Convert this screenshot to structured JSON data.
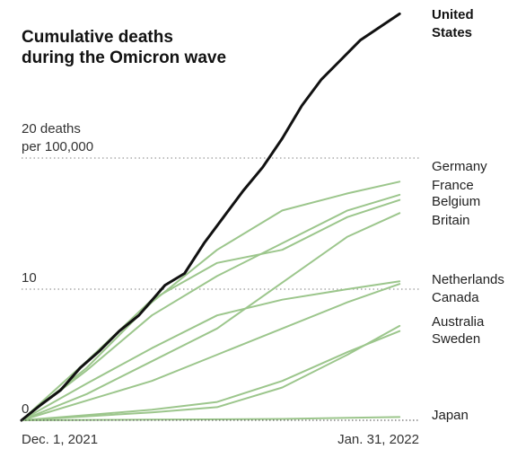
{
  "chart_data": {
    "type": "line",
    "title_lines": [
      "Cumulative deaths",
      "during the Omicron wave"
    ],
    "ytick_labels": [
      {
        "value": 20,
        "lines": [
          "20 deaths",
          "per 100,000"
        ]
      },
      {
        "value": 10,
        "lines": [
          "10"
        ]
      },
      {
        "value": 0,
        "lines": [
          "0"
        ]
      }
    ],
    "xtick_labels": [
      {
        "day": 0,
        "label": "Dec. 1, 2021"
      },
      {
        "day": 61,
        "label": "Jan. 31, 2022"
      }
    ],
    "ylim": [
      0,
      31
    ],
    "xlim_days": [
      0,
      61
    ],
    "grid": "dotted lines at y = 10 and y = 20",
    "colors": {
      "highlight": "#111111",
      "other": "#9cc68c",
      "grid": "#999999",
      "text": "#222222"
    },
    "series": [
      {
        "name": "United States",
        "highlight": true,
        "points": [
          [
            0,
            0
          ],
          [
            3,
            1.2
          ],
          [
            6,
            2.3
          ],
          [
            9,
            4
          ],
          [
            12,
            5.3
          ],
          [
            15,
            6.8
          ],
          [
            18,
            8
          ],
          [
            22,
            10.3
          ],
          [
            25,
            11.2
          ],
          [
            28,
            13.5
          ],
          [
            31,
            15.5
          ],
          [
            34,
            17.5
          ],
          [
            37,
            19.3
          ],
          [
            40,
            21.5
          ],
          [
            43,
            24
          ],
          [
            46,
            26
          ],
          [
            49,
            27.5
          ],
          [
            52,
            29
          ],
          [
            55,
            30
          ],
          [
            58,
            31
          ]
        ]
      },
      {
        "name": "Germany",
        "points": [
          [
            0,
            0
          ],
          [
            10,
            4
          ],
          [
            20,
            9
          ],
          [
            30,
            13
          ],
          [
            40,
            16
          ],
          [
            50,
            17.3
          ],
          [
            58,
            18.2
          ]
        ]
      },
      {
        "name": "France",
        "points": [
          [
            0,
            0
          ],
          [
            10,
            3.8
          ],
          [
            20,
            8
          ],
          [
            30,
            11
          ],
          [
            40,
            13.5
          ],
          [
            50,
            16
          ],
          [
            58,
            17.2
          ]
        ]
      },
      {
        "name": "Belgium",
        "points": [
          [
            0,
            0
          ],
          [
            10,
            4.5
          ],
          [
            20,
            9.2
          ],
          [
            30,
            12
          ],
          [
            40,
            13
          ],
          [
            50,
            15.5
          ],
          [
            58,
            16.8
          ]
        ]
      },
      {
        "name": "Britain",
        "points": [
          [
            0,
            0
          ],
          [
            10,
            2
          ],
          [
            20,
            4.5
          ],
          [
            30,
            7
          ],
          [
            40,
            10.5
          ],
          [
            50,
            14
          ],
          [
            58,
            15.8
          ]
        ]
      },
      {
        "name": "Netherlands",
        "points": [
          [
            0,
            0
          ],
          [
            10,
            2.8
          ],
          [
            20,
            5.5
          ],
          [
            30,
            8
          ],
          [
            40,
            9.2
          ],
          [
            50,
            10
          ],
          [
            58,
            10.6
          ]
        ]
      },
      {
        "name": "Canada",
        "points": [
          [
            0,
            0
          ],
          [
            10,
            1.5
          ],
          [
            20,
            3
          ],
          [
            30,
            5
          ],
          [
            40,
            7
          ],
          [
            50,
            9
          ],
          [
            58,
            10.4
          ]
        ]
      },
      {
        "name": "Australia",
        "points": [
          [
            0,
            0
          ],
          [
            10,
            0.3
          ],
          [
            20,
            0.6
          ],
          [
            30,
            1
          ],
          [
            40,
            2.5
          ],
          [
            50,
            5
          ],
          [
            58,
            7.2
          ]
        ]
      },
      {
        "name": "Sweden",
        "points": [
          [
            0,
            0
          ],
          [
            10,
            0.4
          ],
          [
            20,
            0.8
          ],
          [
            30,
            1.4
          ],
          [
            40,
            3
          ],
          [
            50,
            5.2
          ],
          [
            58,
            6.8
          ]
        ]
      },
      {
        "name": "Japan",
        "points": [
          [
            0,
            0
          ],
          [
            20,
            0.05
          ],
          [
            40,
            0.1
          ],
          [
            58,
            0.25
          ]
        ]
      }
    ],
    "series_labels": [
      {
        "series": "United States",
        "lines": [
          "United",
          "States"
        ],
        "bold": true
      },
      {
        "series": "Germany",
        "lines": [
          "Germany"
        ]
      },
      {
        "series": "France",
        "lines": [
          "France"
        ]
      },
      {
        "series": "Belgium",
        "lines": [
          "Belgium"
        ]
      },
      {
        "series": "Britain",
        "lines": [
          "Britain"
        ]
      },
      {
        "series": "Netherlands",
        "lines": [
          "Netherlands"
        ]
      },
      {
        "series": "Canada",
        "lines": [
          "Canada"
        ]
      },
      {
        "series": "Australia",
        "lines": [
          "Australia"
        ]
      },
      {
        "series": "Sweden",
        "lines": [
          "Sweden"
        ]
      },
      {
        "series": "Japan",
        "lines": [
          "Japan"
        ]
      }
    ]
  }
}
